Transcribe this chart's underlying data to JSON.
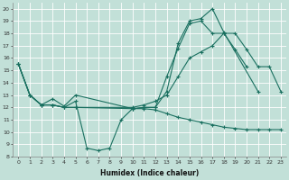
{
  "xlabel": "Humidex (Indice chaleur)",
  "bg_color": "#c2e0d8",
  "line_color": "#1a7060",
  "grid_color": "#ffffff",
  "xlim": [
    -0.5,
    23.5
  ],
  "ylim": [
    8,
    20.5
  ],
  "yticks": [
    8,
    9,
    10,
    11,
    12,
    13,
    14,
    15,
    16,
    17,
    18,
    19,
    20
  ],
  "xticks": [
    0,
    1,
    2,
    3,
    4,
    5,
    6,
    7,
    8,
    9,
    10,
    11,
    12,
    13,
    14,
    15,
    16,
    17,
    18,
    19,
    20,
    21,
    22,
    23
  ],
  "series": [
    {
      "x": [
        0,
        1,
        2,
        3,
        4,
        5,
        6,
        7,
        8,
        9,
        10,
        11,
        12,
        13,
        14,
        15,
        16,
        17,
        18,
        19,
        20
      ],
      "y": [
        15.5,
        13.0,
        12.2,
        12.2,
        12.0,
        12.5,
        8.7,
        8.5,
        8.7,
        11.0,
        11.9,
        12.0,
        12.0,
        14.5,
        16.8,
        18.8,
        19.0,
        18.0,
        18.0,
        16.7,
        15.3
      ]
    },
    {
      "x": [
        0,
        1,
        2,
        3,
        4,
        5,
        10,
        11,
        12,
        13,
        14,
        15,
        16,
        17,
        18,
        21
      ],
      "y": [
        15.5,
        13.0,
        12.2,
        12.7,
        12.1,
        13.0,
        11.9,
        12.0,
        12.0,
        13.3,
        17.2,
        19.0,
        19.2,
        20.0,
        18.1,
        13.3
      ]
    },
    {
      "x": [
        0,
        1,
        2,
        3,
        4,
        5,
        10,
        11,
        12,
        13,
        14,
        15,
        16,
        17,
        18,
        19,
        20,
        21,
        22,
        23
      ],
      "y": [
        15.5,
        13.0,
        12.2,
        12.2,
        12.0,
        12.0,
        12.0,
        12.2,
        12.5,
        13.0,
        14.5,
        16.0,
        16.5,
        17.0,
        18.0,
        18.0,
        16.7,
        15.3,
        15.3,
        13.3
      ]
    },
    {
      "x": [
        0,
        1,
        2,
        3,
        4,
        5,
        10,
        11,
        12,
        13,
        14,
        15,
        16,
        17,
        18,
        19,
        20,
        21,
        22,
        23
      ],
      "y": [
        15.5,
        13.0,
        12.2,
        12.2,
        12.0,
        12.0,
        11.9,
        11.9,
        11.8,
        11.5,
        11.2,
        11.0,
        10.8,
        10.6,
        10.4,
        10.3,
        10.2,
        10.2,
        10.2,
        10.2
      ]
    }
  ]
}
